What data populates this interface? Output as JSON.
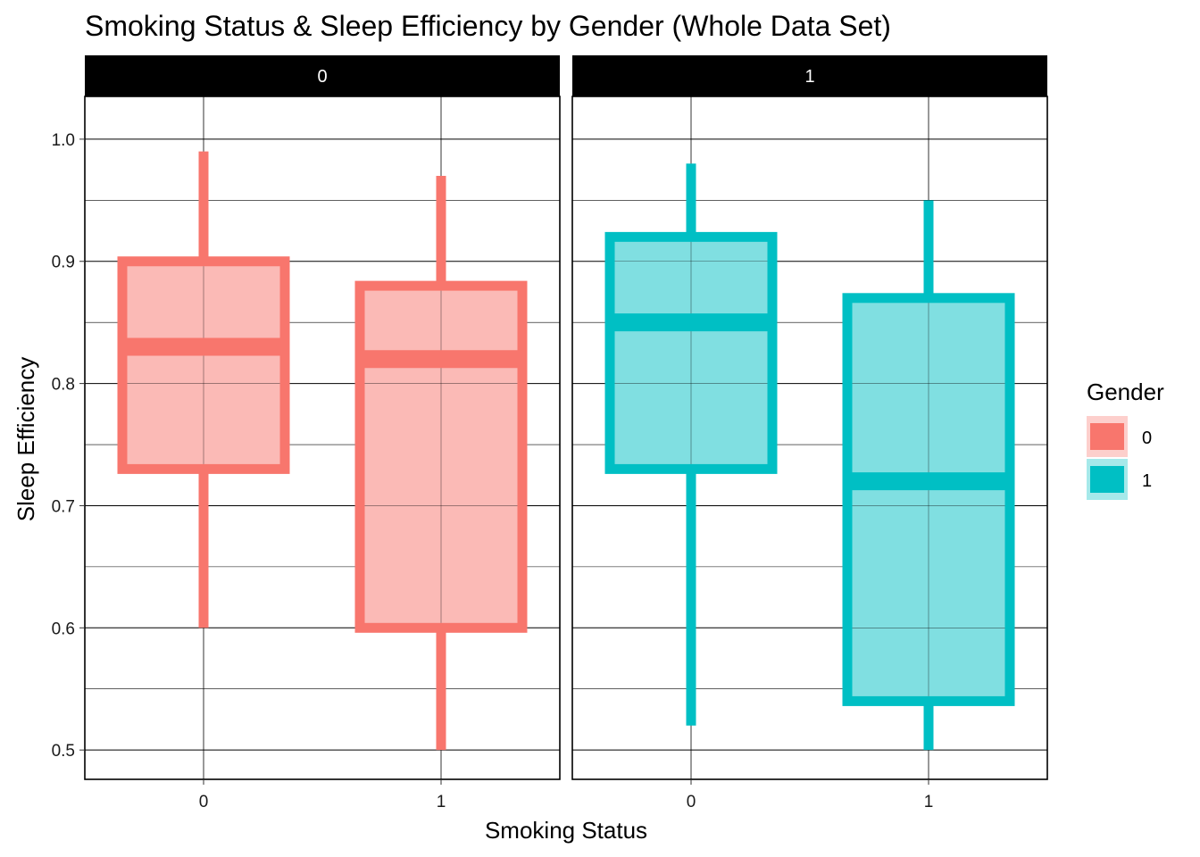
{
  "chart_data": {
    "type": "boxplot",
    "title": "Smoking Status & Sleep Efficiency by Gender (Whole Data Set)",
    "xlabel": "Smoking Status",
    "ylabel": "Sleep Efficiency",
    "facet_labels": [
      "0",
      "1"
    ],
    "categories": [
      "0",
      "1"
    ],
    "ylim": [
      0.476,
      1.035
    ],
    "y_ticks": [
      0.5,
      0.6,
      0.7,
      0.8,
      0.9,
      1.0
    ],
    "y_tick_labels": [
      "0.5",
      "0.6",
      "0.7",
      "0.8",
      "0.9",
      "1.0"
    ],
    "grid": true,
    "legend": {
      "title": "Gender",
      "position": "right",
      "entries": [
        {
          "label": "0",
          "color": "#F8766D"
        },
        {
          "label": "1",
          "color": "#00BFC4"
        }
      ]
    },
    "series": [
      {
        "gender": "0",
        "color": "#F8766D",
        "fill": "#FBBAB6",
        "boxes": [
          {
            "smoking": "0",
            "min": 0.6,
            "q1": 0.73,
            "median": 0.83,
            "q3": 0.9,
            "max": 0.99
          },
          {
            "smoking": "1",
            "min": 0.5,
            "q1": 0.6,
            "median": 0.82,
            "q3": 0.88,
            "max": 0.97
          }
        ]
      },
      {
        "gender": "1",
        "color": "#00BFC4",
        "fill": "#80DFE1",
        "boxes": [
          {
            "smoking": "0",
            "min": 0.52,
            "q1": 0.73,
            "median": 0.85,
            "q3": 0.92,
            "max": 0.98
          },
          {
            "smoking": "1",
            "min": 0.5,
            "q1": 0.54,
            "median": 0.72,
            "q3": 0.87,
            "max": 0.95
          }
        ]
      }
    ]
  }
}
